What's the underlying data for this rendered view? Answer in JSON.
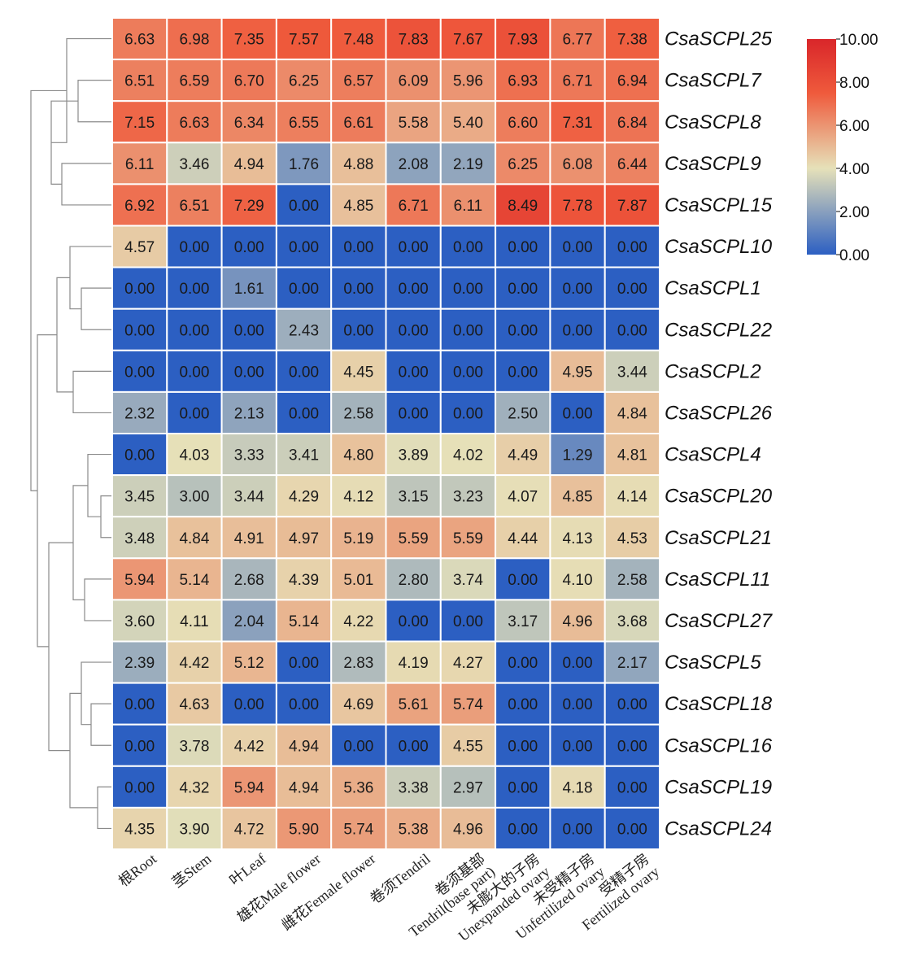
{
  "chart_data": {
    "type": "heatmap",
    "title": "",
    "columns": [
      "根Root",
      "茎Stem",
      "叶Leaf",
      "雄花Male flower",
      "雌花Female flower",
      "卷须Tendril",
      "卷须基部\nTendril(base part)",
      "未膨大的子房\nUnexpanded ovary",
      "未受精子房\nUnfertilized ovary",
      "受精子房\nFertilized ovary"
    ],
    "rows": [
      "CsaSCPL25",
      "CsaSCPL7",
      "CsaSCPL8",
      "CsaSCPL9",
      "CsaSCPL15",
      "CsaSCPL10",
      "CsaSCPL1",
      "CsaSCPL22",
      "CsaSCPL2",
      "CsaSCPL26",
      "CsaSCPL4",
      "CsaSCPL20",
      "CsaSCPL21",
      "CsaSCPL11",
      "CsaSCPL27",
      "CsaSCPL5",
      "CsaSCPL18",
      "CsaSCPL16",
      "CsaSCPL19",
      "CsaSCPL24"
    ],
    "values": [
      [
        6.63,
        6.98,
        7.35,
        7.57,
        7.48,
        7.83,
        7.67,
        7.93,
        6.77,
        7.38
      ],
      [
        6.51,
        6.59,
        6.7,
        6.25,
        6.57,
        6.09,
        5.96,
        6.93,
        6.71,
        6.94
      ],
      [
        7.15,
        6.63,
        6.34,
        6.55,
        6.61,
        5.58,
        5.4,
        6.6,
        7.31,
        6.84
      ],
      [
        6.11,
        3.46,
        4.94,
        1.76,
        4.88,
        2.08,
        2.19,
        6.25,
        6.08,
        6.44
      ],
      [
        6.92,
        6.51,
        7.29,
        0.0,
        4.85,
        6.71,
        6.11,
        8.49,
        7.78,
        7.87
      ],
      [
        4.57,
        0.0,
        0.0,
        0.0,
        0.0,
        0.0,
        0.0,
        0.0,
        0.0,
        0.0
      ],
      [
        0.0,
        0.0,
        1.61,
        0.0,
        0.0,
        0.0,
        0.0,
        0.0,
        0.0,
        0.0
      ],
      [
        0.0,
        0.0,
        0.0,
        2.43,
        0.0,
        0.0,
        0.0,
        0.0,
        0.0,
        0.0
      ],
      [
        0.0,
        0.0,
        0.0,
        0.0,
        4.45,
        0.0,
        0.0,
        0.0,
        4.95,
        3.44
      ],
      [
        2.32,
        0.0,
        2.13,
        0.0,
        2.58,
        0.0,
        0.0,
        2.5,
        0.0,
        4.84
      ],
      [
        0.0,
        4.03,
        3.33,
        3.41,
        4.8,
        3.89,
        4.02,
        4.49,
        1.29,
        4.81
      ],
      [
        3.45,
        3.0,
        3.44,
        4.29,
        4.12,
        3.15,
        3.23,
        4.07,
        4.85,
        4.14
      ],
      [
        3.48,
        4.84,
        4.91,
        4.97,
        5.19,
        5.59,
        5.59,
        4.44,
        4.13,
        4.53
      ],
      [
        5.94,
        5.14,
        2.68,
        4.39,
        5.01,
        2.8,
        3.74,
        0.0,
        4.1,
        2.58
      ],
      [
        3.6,
        4.11,
        2.04,
        5.14,
        4.22,
        0.0,
        0.0,
        3.17,
        4.96,
        3.68
      ],
      [
        2.39,
        4.42,
        5.12,
        0.0,
        2.83,
        4.19,
        4.27,
        0.0,
        0.0,
        2.17
      ],
      [
        0.0,
        4.63,
        0.0,
        0.0,
        4.69,
        5.61,
        5.74,
        0.0,
        0.0,
        0.0
      ],
      [
        0.0,
        3.78,
        4.42,
        4.94,
        0.0,
        0.0,
        4.55,
        0.0,
        0.0,
        0.0
      ],
      [
        0.0,
        4.32,
        5.94,
        4.94,
        5.36,
        3.38,
        2.97,
        0.0,
        4.18,
        0.0
      ],
      [
        4.35,
        3.9,
        4.72,
        5.9,
        5.74,
        5.38,
        4.96,
        0.0,
        0.0,
        0.0
      ]
    ],
    "value_range": [
      0.0,
      10.0
    ],
    "colorbar": {
      "ticks": [
        "10.00",
        "8.00",
        "6.00",
        "4.00",
        "2.00",
        "0.00"
      ],
      "tick_values": [
        10,
        8,
        6,
        4,
        2,
        0
      ],
      "colors": [
        "#2c5fc2",
        "#e6e1b9",
        "#ef5a3c",
        "#d9262a"
      ]
    },
    "dendrogram": "row clustering tree on left side",
    "legend_position": "top-right"
  }
}
